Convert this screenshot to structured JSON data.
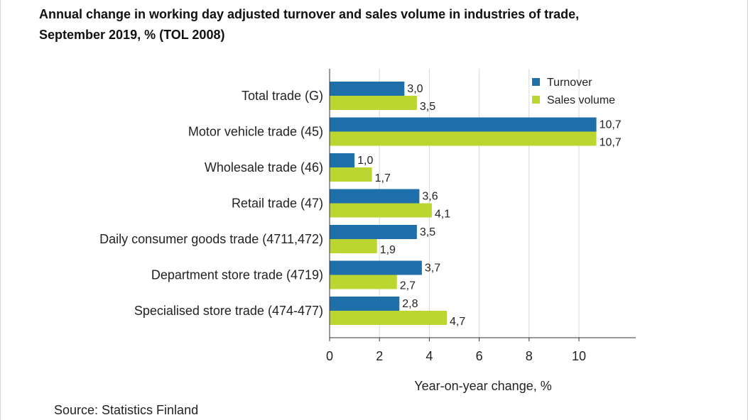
{
  "title": {
    "line1": "Annual change in working day adjusted turnover and sales volume in industries of trade,",
    "line2": "September 2019, % (TOL 2008)"
  },
  "source": "Source: Statistics Finland",
  "chart_data": {
    "type": "bar",
    "orientation": "horizontal",
    "categories": [
      "Total trade (G)",
      "Motor vehicle trade (45)",
      "Wholesale trade (46)",
      "Retail trade (47)",
      "Daily consumer goods trade (4711,472)",
      "Department store trade (4719)",
      "Specialised store trade (474-477)"
    ],
    "series": [
      {
        "name": "Turnover",
        "color": "#1f6fab",
        "values": [
          3.0,
          10.7,
          1.0,
          3.6,
          3.5,
          3.7,
          2.8
        ],
        "labels": [
          "3,0",
          "10,7",
          "1,0",
          "3,6",
          "3,5",
          "3,7",
          "2,8"
        ]
      },
      {
        "name": "Sales volume",
        "color": "#bcd631",
        "values": [
          3.5,
          10.7,
          1.7,
          4.1,
          1.9,
          2.7,
          4.7
        ],
        "labels": [
          "3,5",
          "10,7",
          "1,7",
          "4,1",
          "1,9",
          "2,7",
          "4,7"
        ]
      }
    ],
    "xlabel": "Year-on-year change, %",
    "xlim": [
      0,
      12.2
    ],
    "xticks": [
      0,
      2,
      4,
      6,
      8,
      10
    ],
    "xtick_labels": [
      "0",
      "2",
      "4",
      "6",
      "8",
      "10"
    ],
    "grid": true,
    "legend_position": "top-right"
  }
}
